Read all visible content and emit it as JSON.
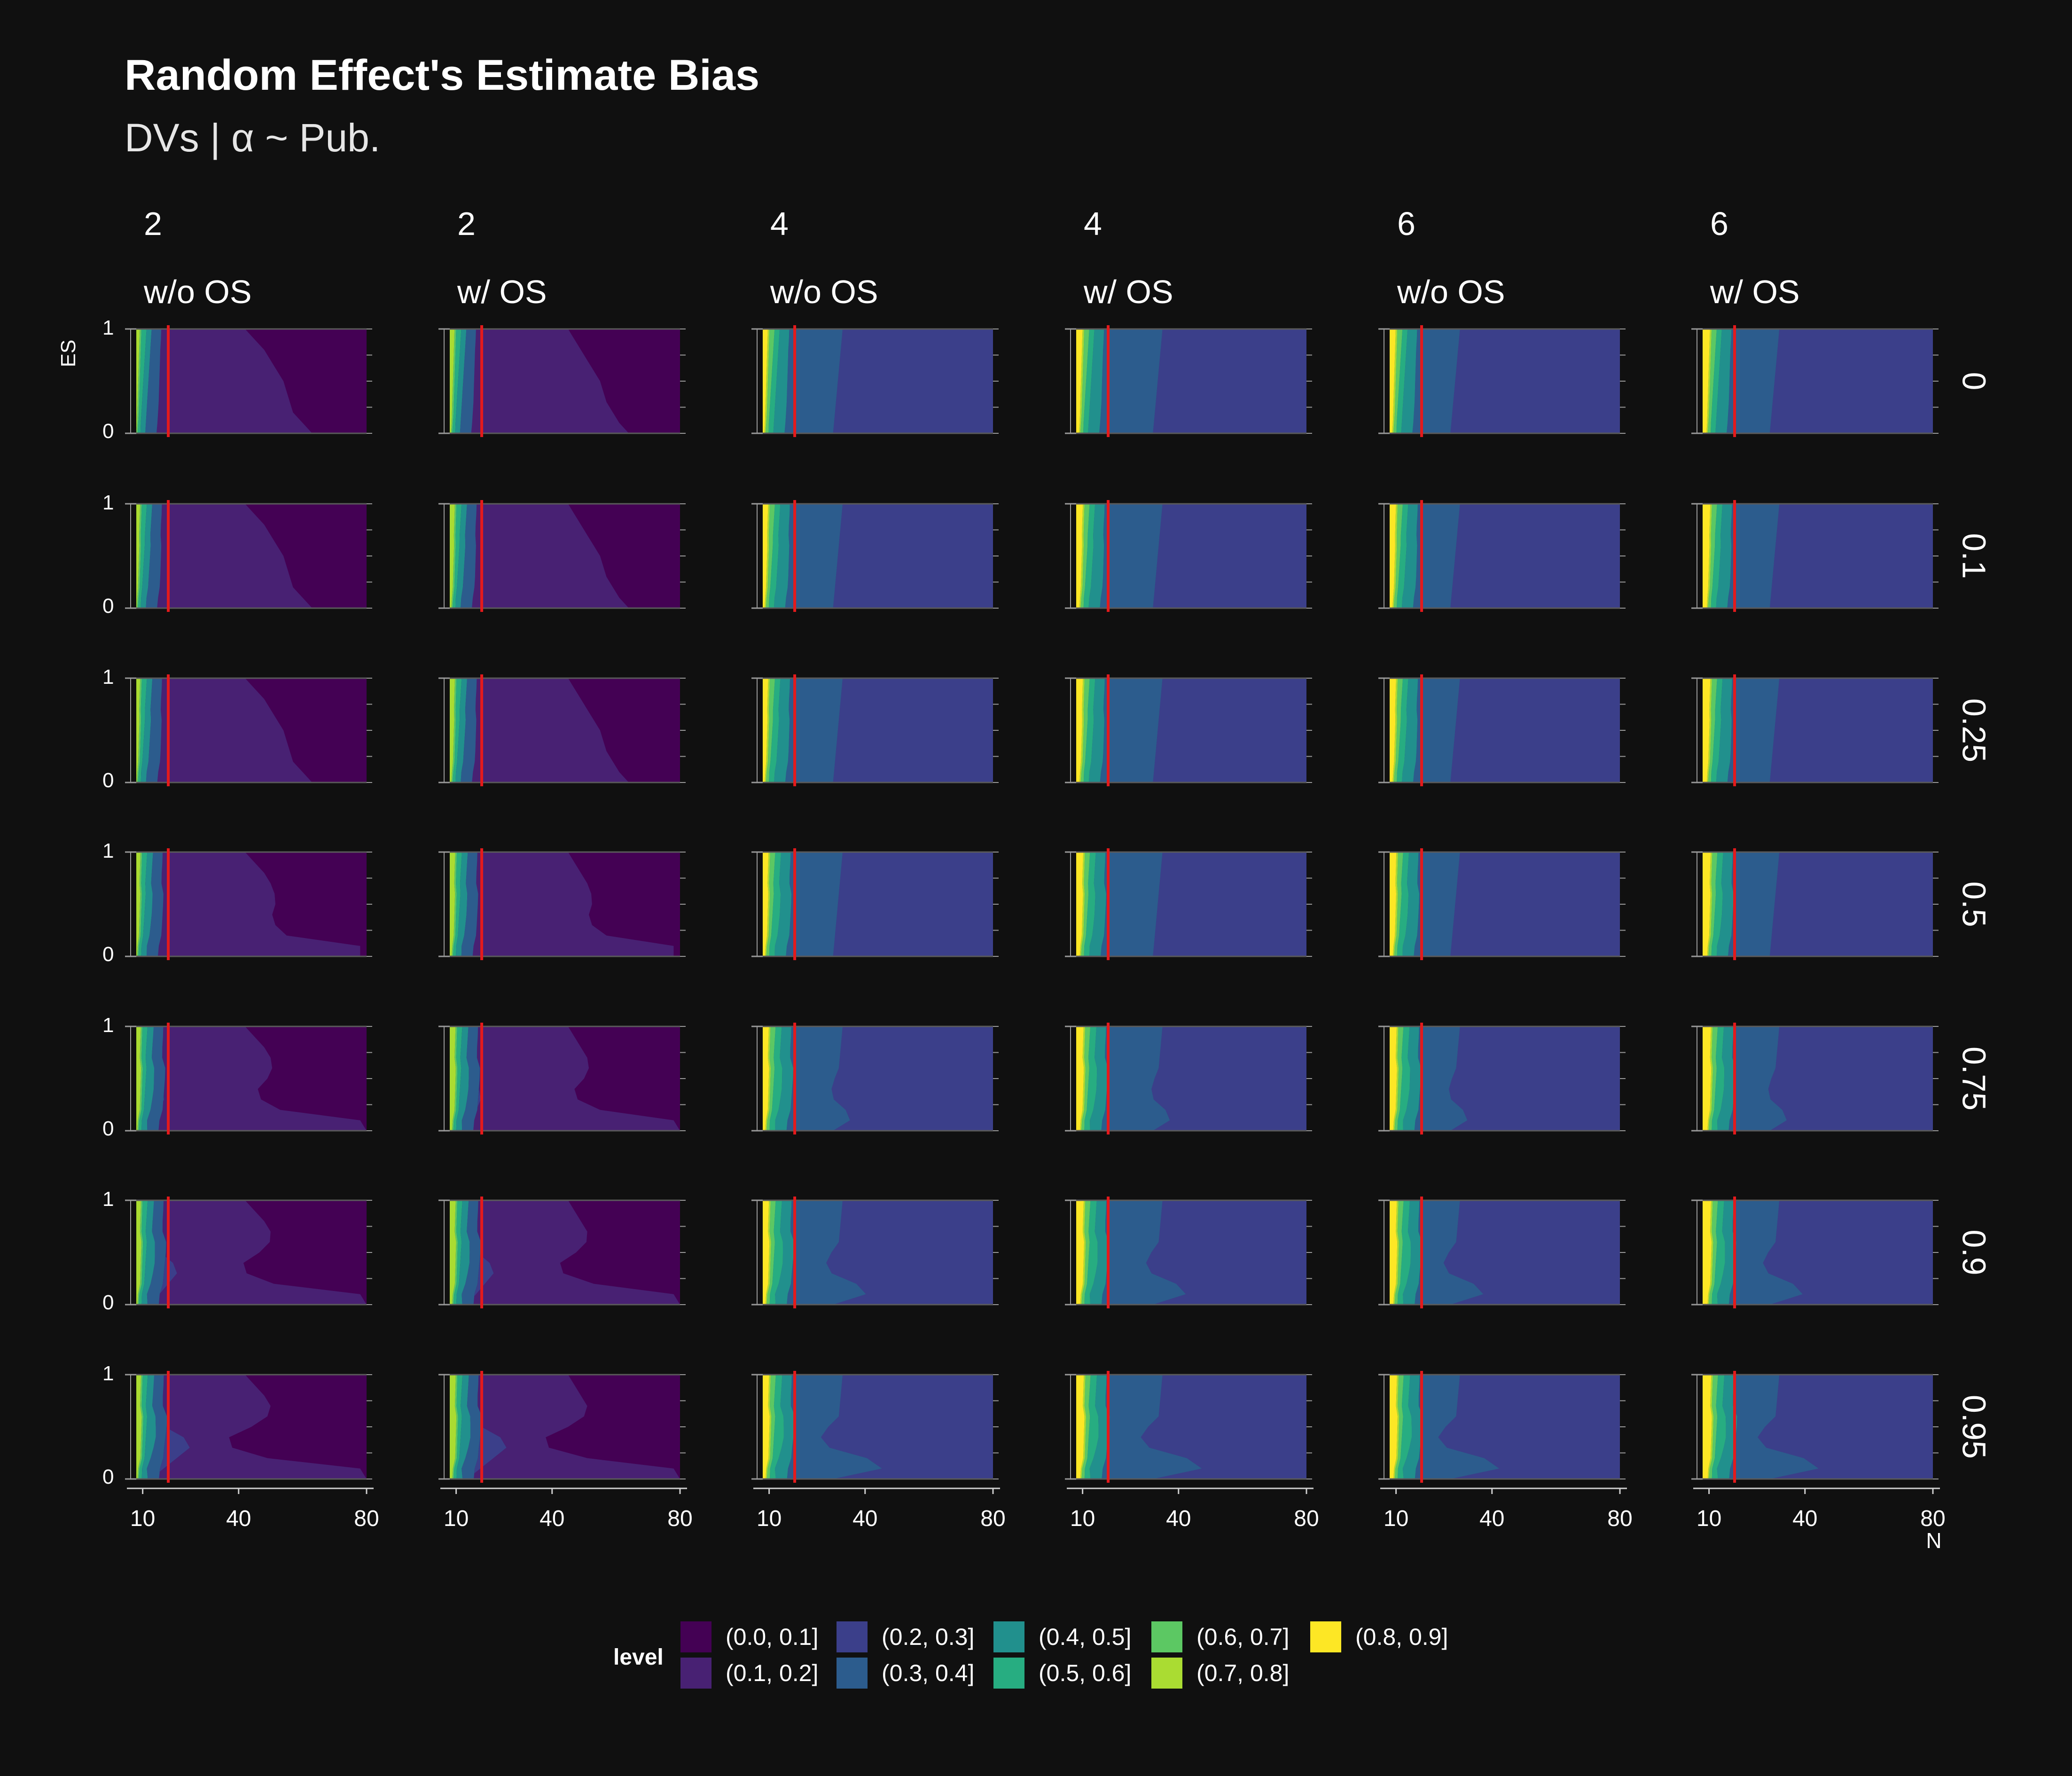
{
  "title": "Random Effect's Estimate Bias",
  "subtitle": "DVs | α ~ Pub.",
  "chart_data": {
    "type": "heatmap",
    "subtype": "filled-contour facet grid",
    "title": "Random Effect's Estimate Bias",
    "subtitle": "DVs | α ~ Pub.",
    "xlabel": "N",
    "ylabel": "ES",
    "xlim": [
      8,
      80
    ],
    "ylim": [
      0,
      1
    ],
    "x_ticks": [
      10,
      40,
      80
    ],
    "y_ticks": [
      0,
      1
    ],
    "reference_line_x": 18,
    "reference_line_color": "#e41a1c",
    "column_facets": [
      {
        "top": "2",
        "bottom": "w/o OS"
      },
      {
        "top": "2",
        "bottom": "w/ OS"
      },
      {
        "top": "4",
        "bottom": "w/o OS"
      },
      {
        "top": "4",
        "bottom": "w/ OS"
      },
      {
        "top": "6",
        "bottom": "w/o OS"
      },
      {
        "top": "6",
        "bottom": "w/ OS"
      }
    ],
    "row_facets": [
      "0",
      "0.1",
      "0.25",
      "0.5",
      "0.75",
      "0.9",
      "0.95"
    ],
    "legend": {
      "title": "level",
      "position": "bottom",
      "levels": [
        {
          "label": "(0.0, 0.1]",
          "color": "#440154"
        },
        {
          "label": "(0.1, 0.2]",
          "color": "#482173"
        },
        {
          "label": "(0.2, 0.3]",
          "color": "#3b3f8a"
        },
        {
          "label": "(0.3, 0.4]",
          "color": "#2c5c8d"
        },
        {
          "label": "(0.4, 0.5]",
          "color": "#21908d"
        },
        {
          "label": "(0.5, 0.6]",
          "color": "#27ad81"
        },
        {
          "label": "(0.6, 0.7]",
          "color": "#5cc863"
        },
        {
          "label": "(0.7, 0.8]",
          "color": "#aadc32"
        },
        {
          "label": "(0.8, 0.9]",
          "color": "#fde725"
        }
      ]
    },
    "grid": false,
    "note_on_data": "Each panel shows contour bands of level over N (x) and ES (y); boundaries given as N values at ES sampled 0 to 1.",
    "es_samples": [
      0,
      0.1,
      0.2,
      0.3,
      0.4,
      0.5,
      0.6,
      0.7,
      0.8,
      0.9,
      1.0
    ]
  }
}
